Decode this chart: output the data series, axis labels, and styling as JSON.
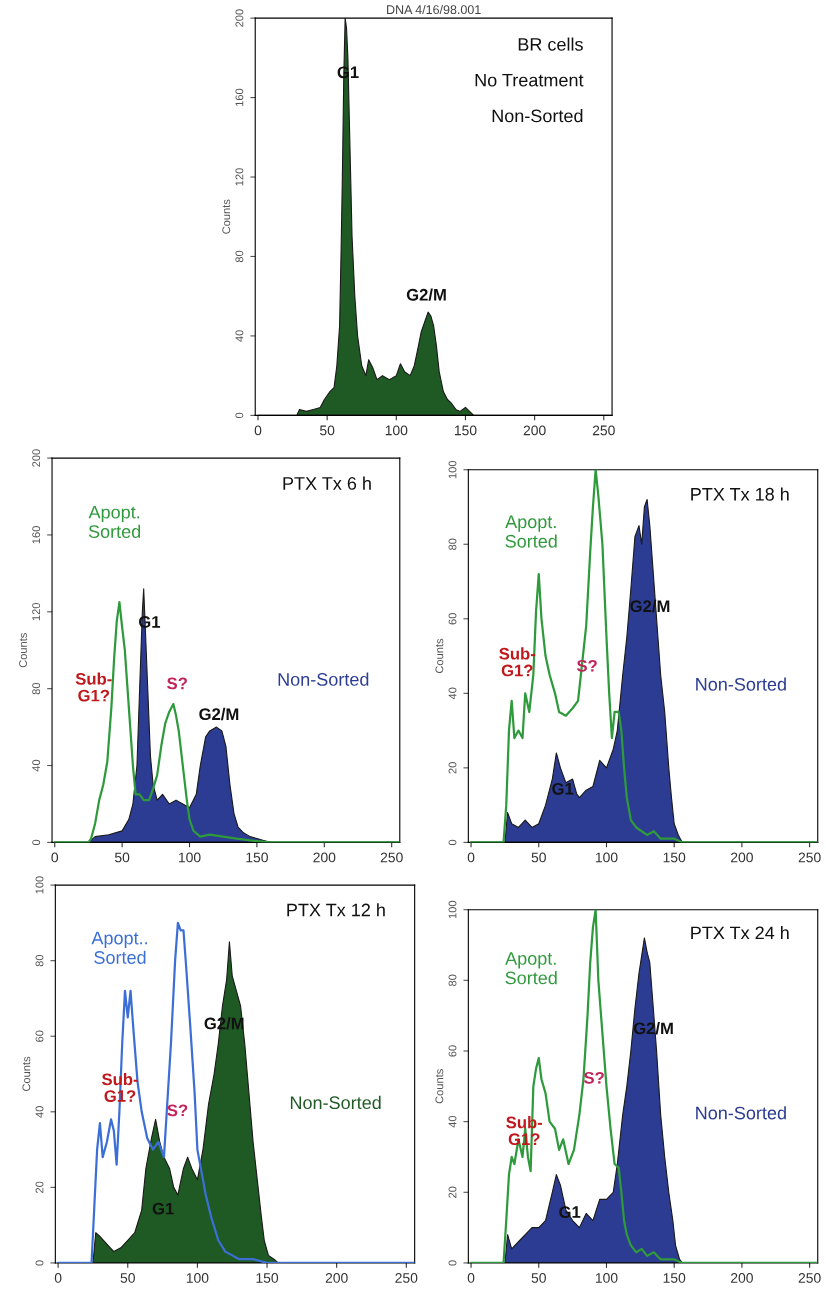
{
  "chart_data": [
    {
      "type": "area",
      "title": "DNA 4/16/98.001",
      "ylabel": "Counts",
      "xlim": [
        -2,
        256
      ],
      "ylim": [
        0,
        200
      ],
      "xticks": [
        0,
        50,
        100,
        150,
        200,
        250
      ],
      "yticks": [
        0,
        40,
        80,
        120,
        160,
        200
      ],
      "annotations": [
        "BR cells",
        "No Treatment",
        "Non-Sorted",
        "G1",
        "G2/M"
      ],
      "series": [
        {
          "type": "area",
          "color": "#1f5a24",
          "x": [
            0,
            28,
            30,
            35,
            40,
            45,
            48,
            52,
            55,
            57,
            59,
            60,
            61,
            62,
            63,
            64,
            65,
            66,
            67,
            68,
            70,
            72,
            75,
            78,
            80,
            83,
            86,
            90,
            95,
            100,
            103,
            106,
            110,
            113,
            116,
            118,
            121,
            123,
            125,
            127,
            129,
            131,
            134,
            137,
            140,
            143,
            146,
            150,
            153,
            156,
            256
          ],
          "values": [
            0,
            0,
            3,
            2,
            3,
            4,
            8,
            12,
            14,
            25,
            45,
            80,
            120,
            170,
            200,
            195,
            180,
            150,
            120,
            90,
            60,
            40,
            25,
            20,
            28,
            24,
            18,
            20,
            18,
            20,
            26,
            22,
            20,
            25,
            35,
            42,
            48,
            52,
            50,
            45,
            35,
            22,
            12,
            8,
            6,
            3,
            2,
            4,
            2,
            0,
            0
          ]
        }
      ]
    },
    {
      "type": "area",
      "ylabel": "Counts",
      "xlim": [
        -2,
        256
      ],
      "ylim": [
        0,
        200
      ],
      "xticks": [
        0,
        50,
        100,
        150,
        200,
        250
      ],
      "yticks": [
        0,
        40,
        80,
        120,
        160,
        200
      ],
      "annotations": [
        "PTX Tx 6 h",
        "G1",
        "G2/M",
        "Sub-\nG1?",
        "S?"
      ],
      "series": [
        {
          "type": "area",
          "name": "Non-Sorted",
          "color": "#2b3c92",
          "x": [
            0,
            25,
            30,
            40,
            50,
            55,
            58,
            61,
            63,
            65,
            66,
            67,
            69,
            71,
            73,
            76,
            80,
            85,
            90,
            95,
            100,
            105,
            108,
            112,
            115,
            120,
            124,
            127,
            130,
            133,
            136,
            140,
            145,
            150,
            155,
            160,
            256
          ],
          "values": [
            0,
            0,
            3,
            4,
            6,
            12,
            20,
            40,
            80,
            120,
            132,
            115,
            80,
            45,
            30,
            22,
            25,
            20,
            22,
            20,
            18,
            25,
            40,
            55,
            58,
            60,
            58,
            50,
            30,
            15,
            8,
            5,
            3,
            2,
            1,
            0,
            0
          ]
        },
        {
          "type": "line",
          "name": "Apopt.\nSorted",
          "color": "#2e9a3c",
          "x": [
            0,
            25,
            27,
            30,
            33,
            36,
            39,
            42,
            44,
            46,
            48,
            50,
            52,
            54,
            56,
            58,
            60,
            63,
            66,
            70,
            73,
            76,
            79,
            82,
            85,
            88,
            90,
            92,
            95,
            98,
            100,
            103,
            108,
            115,
            125,
            135,
            145,
            160,
            256
          ],
          "values": [
            0,
            0,
            2,
            10,
            22,
            30,
            42,
            70,
            95,
            115,
            125,
            112,
            100,
            80,
            60,
            40,
            25,
            25,
            22,
            22,
            28,
            35,
            50,
            62,
            68,
            72,
            66,
            58,
            40,
            22,
            12,
            6,
            3,
            4,
            3,
            2,
            1,
            0,
            0
          ]
        }
      ]
    },
    {
      "type": "area",
      "ylabel": "Counts",
      "xlim": [
        -2,
        256
      ],
      "ylim": [
        0,
        100
      ],
      "xticks": [
        0,
        50,
        100,
        150,
        200,
        250
      ],
      "yticks": [
        0,
        20,
        40,
        60,
        80,
        100
      ],
      "annotations": [
        "PTX Tx 18 h",
        "G1",
        "G2/M",
        "Sub-\nG1?",
        "S?"
      ],
      "series": [
        {
          "type": "area",
          "name": "Non-Sorted",
          "color": "#2b3c92",
          "x": [
            0,
            25,
            27,
            30,
            35,
            40,
            45,
            50,
            55,
            60,
            63,
            66,
            70,
            75,
            78,
            80,
            85,
            90,
            95,
            100,
            105,
            108,
            112,
            115,
            118,
            121,
            124,
            126,
            128,
            130,
            132,
            134,
            137,
            140,
            143,
            146,
            148,
            150,
            153,
            156,
            256
          ],
          "values": [
            0,
            0,
            8,
            5,
            4,
            6,
            4,
            5,
            10,
            17,
            24,
            20,
            16,
            17,
            13,
            12,
            14,
            15,
            22,
            20,
            25,
            30,
            45,
            55,
            68,
            82,
            85,
            80,
            90,
            92,
            85,
            75,
            60,
            45,
            35,
            20,
            12,
            5,
            2,
            0,
            0
          ]
        },
        {
          "type": "line",
          "name": "Apopt.\nSorted",
          "color": "#2e9a3c",
          "x": [
            0,
            24,
            26,
            28,
            30,
            32,
            35,
            38,
            40,
            43,
            46,
            48,
            50,
            52,
            55,
            58,
            62,
            65,
            70,
            75,
            79,
            82,
            85,
            88,
            90,
            92,
            94,
            97,
            100,
            102,
            104,
            106,
            109,
            111,
            113,
            115,
            118,
            122,
            126,
            130,
            135,
            140,
            150,
            156,
            256
          ],
          "values": [
            0,
            0,
            10,
            30,
            38,
            28,
            30,
            28,
            40,
            35,
            45,
            62,
            72,
            60,
            50,
            45,
            40,
            35,
            34,
            36,
            38,
            48,
            58,
            78,
            90,
            100,
            93,
            80,
            55,
            40,
            28,
            35,
            35,
            30,
            20,
            12,
            6,
            4,
            3,
            2,
            3,
            1,
            1,
            0,
            0
          ]
        }
      ]
    },
    {
      "type": "area",
      "ylabel": "Counts",
      "xlim": [
        -2,
        256
      ],
      "ylim": [
        0,
        100
      ],
      "xticks": [
        0,
        50,
        100,
        150,
        200,
        250
      ],
      "yticks": [
        0,
        20,
        40,
        60,
        80,
        100
      ],
      "annotations": [
        "PTX Tx 12 h",
        "G1",
        "G2/M",
        "Sub-\nG1?",
        "S?"
      ],
      "series": [
        {
          "type": "area",
          "name": "Non-Sorted",
          "color": "#1f5a24",
          "x": [
            0,
            25,
            27,
            30,
            35,
            40,
            45,
            50,
            55,
            60,
            63,
            67,
            70,
            73,
            76,
            80,
            83,
            86,
            90,
            93,
            96,
            100,
            104,
            108,
            112,
            115,
            118,
            121,
            123,
            125,
            128,
            131,
            134,
            137,
            140,
            143,
            146,
            148,
            151,
            155,
            158,
            256
          ],
          "values": [
            0,
            0,
            8,
            7,
            5,
            3,
            4,
            6,
            8,
            14,
            25,
            33,
            38,
            32,
            28,
            25,
            20,
            18,
            25,
            28,
            25,
            22,
            30,
            42,
            50,
            58,
            68,
            75,
            85,
            76,
            72,
            68,
            58,
            45,
            32,
            22,
            12,
            6,
            2,
            1,
            0,
            0
          ]
        },
        {
          "type": "line",
          "name": "Apopt..\nSorted",
          "color": "#3c6fd6",
          "x": [
            0,
            24,
            26,
            28,
            30,
            32,
            35,
            38,
            40,
            42,
            44,
            46,
            48,
            50,
            52,
            54,
            57,
            60,
            64,
            68,
            72,
            76,
            78,
            81,
            84,
            86,
            88,
            90,
            92,
            95,
            98,
            100,
            103,
            106,
            110,
            115,
            120,
            125,
            130,
            140,
            150,
            256
          ],
          "values": [
            0,
            0,
            15,
            30,
            37,
            28,
            32,
            38,
            35,
            26,
            40,
            58,
            72,
            65,
            72,
            62,
            48,
            40,
            33,
            30,
            32,
            28,
            40,
            58,
            80,
            90,
            88,
            88,
            78,
            62,
            45,
            30,
            24,
            18,
            12,
            6,
            3,
            2,
            1,
            1,
            0,
            0
          ]
        }
      ]
    },
    {
      "type": "area",
      "ylabel": "Counts",
      "xlim": [
        -2,
        256
      ],
      "ylim": [
        0,
        100
      ],
      "xticks": [
        0,
        50,
        100,
        150,
        200,
        250
      ],
      "yticks": [
        0,
        20,
        40,
        60,
        80,
        100
      ],
      "annotations": [
        "PTX Tx 24 h",
        "G1",
        "G2/M",
        "Sub-\nG1?",
        "S?"
      ],
      "series": [
        {
          "type": "area",
          "name": "Non-Sorted",
          "color": "#2b3c92",
          "x": [
            0,
            25,
            27,
            30,
            35,
            40,
            45,
            50,
            55,
            60,
            63,
            66,
            70,
            75,
            80,
            85,
            90,
            95,
            100,
            105,
            108,
            112,
            115,
            118,
            121,
            124,
            126,
            128,
            130,
            132,
            134,
            137,
            140,
            143,
            146,
            149,
            151,
            154,
            156,
            256
          ],
          "values": [
            0,
            0,
            8,
            4,
            6,
            8,
            10,
            10,
            12,
            20,
            25,
            22,
            15,
            12,
            10,
            14,
            12,
            18,
            18,
            20,
            28,
            42,
            50,
            60,
            72,
            82,
            87,
            92,
            88,
            85,
            75,
            60,
            42,
            30,
            20,
            12,
            5,
            1,
            0,
            0
          ]
        },
        {
          "type": "line",
          "name": "Apopt.\nSorted",
          "color": "#2e9a3c",
          "x": [
            0,
            24,
            26,
            28,
            30,
            32,
            35,
            38,
            40,
            42,
            44,
            46,
            48,
            50,
            52,
            55,
            58,
            62,
            65,
            68,
            72,
            76,
            80,
            83,
            86,
            88,
            90,
            92,
            94,
            97,
            100,
            103,
            106,
            109,
            111,
            113,
            115,
            118,
            122,
            126,
            130,
            135,
            140,
            150,
            156,
            256
          ],
          "values": [
            0,
            0,
            12,
            25,
            30,
            28,
            35,
            30,
            38,
            30,
            26,
            50,
            55,
            58,
            52,
            48,
            40,
            38,
            32,
            35,
            28,
            32,
            42,
            52,
            70,
            85,
            95,
            100,
            80,
            65,
            50,
            38,
            28,
            27,
            20,
            12,
            8,
            5,
            3,
            4,
            2,
            3,
            1,
            1,
            0,
            0
          ]
        }
      ]
    }
  ]
}
